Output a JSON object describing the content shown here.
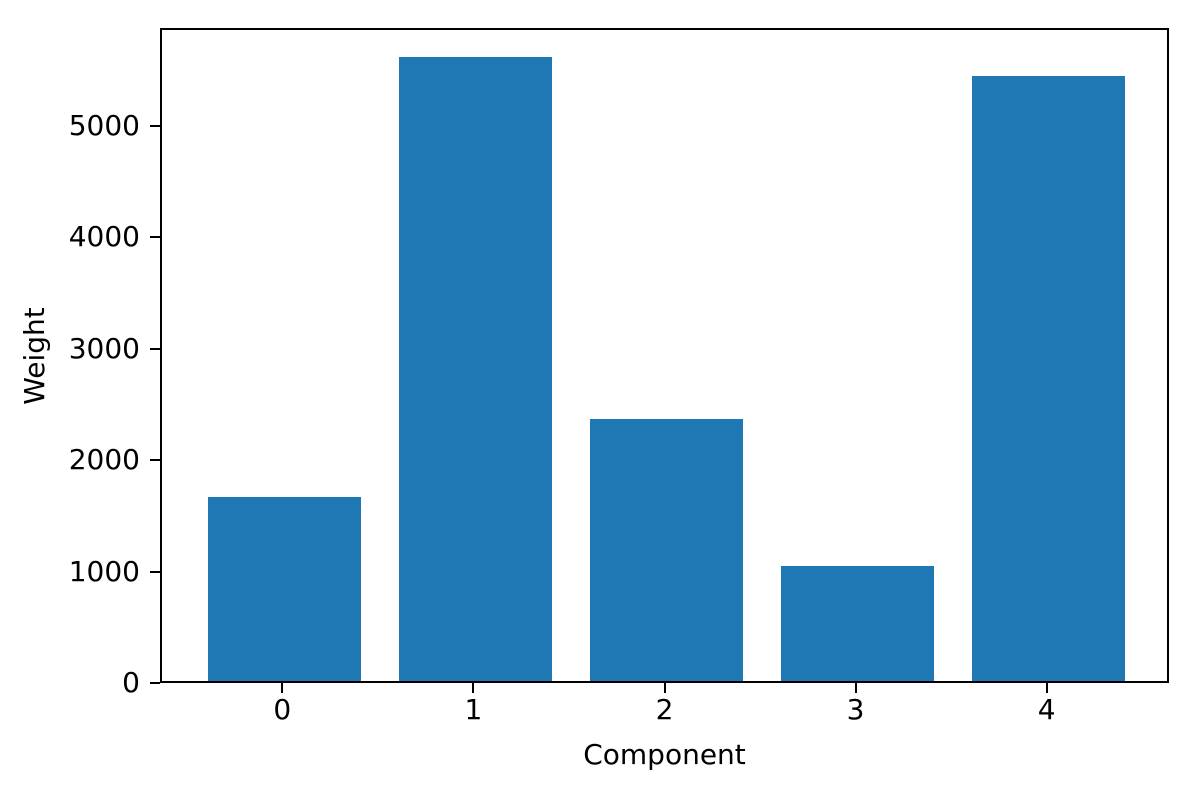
{
  "chart_data": {
    "type": "bar",
    "categories": [
      "0",
      "1",
      "2",
      "3",
      "4"
    ],
    "values": [
      1650,
      5600,
      2350,
      1030,
      5430
    ],
    "xlabel": "Component",
    "ylabel": "Weight",
    "yticks": [
      0,
      1000,
      2000,
      3000,
      4000,
      5000
    ],
    "ylim": [
      0,
      5880
    ],
    "xlim": [
      -0.64,
      4.64
    ],
    "bar_width": 0.8,
    "bar_color": "#1f77b4",
    "axis_color": "#000000",
    "grid": false,
    "legend": "none"
  }
}
